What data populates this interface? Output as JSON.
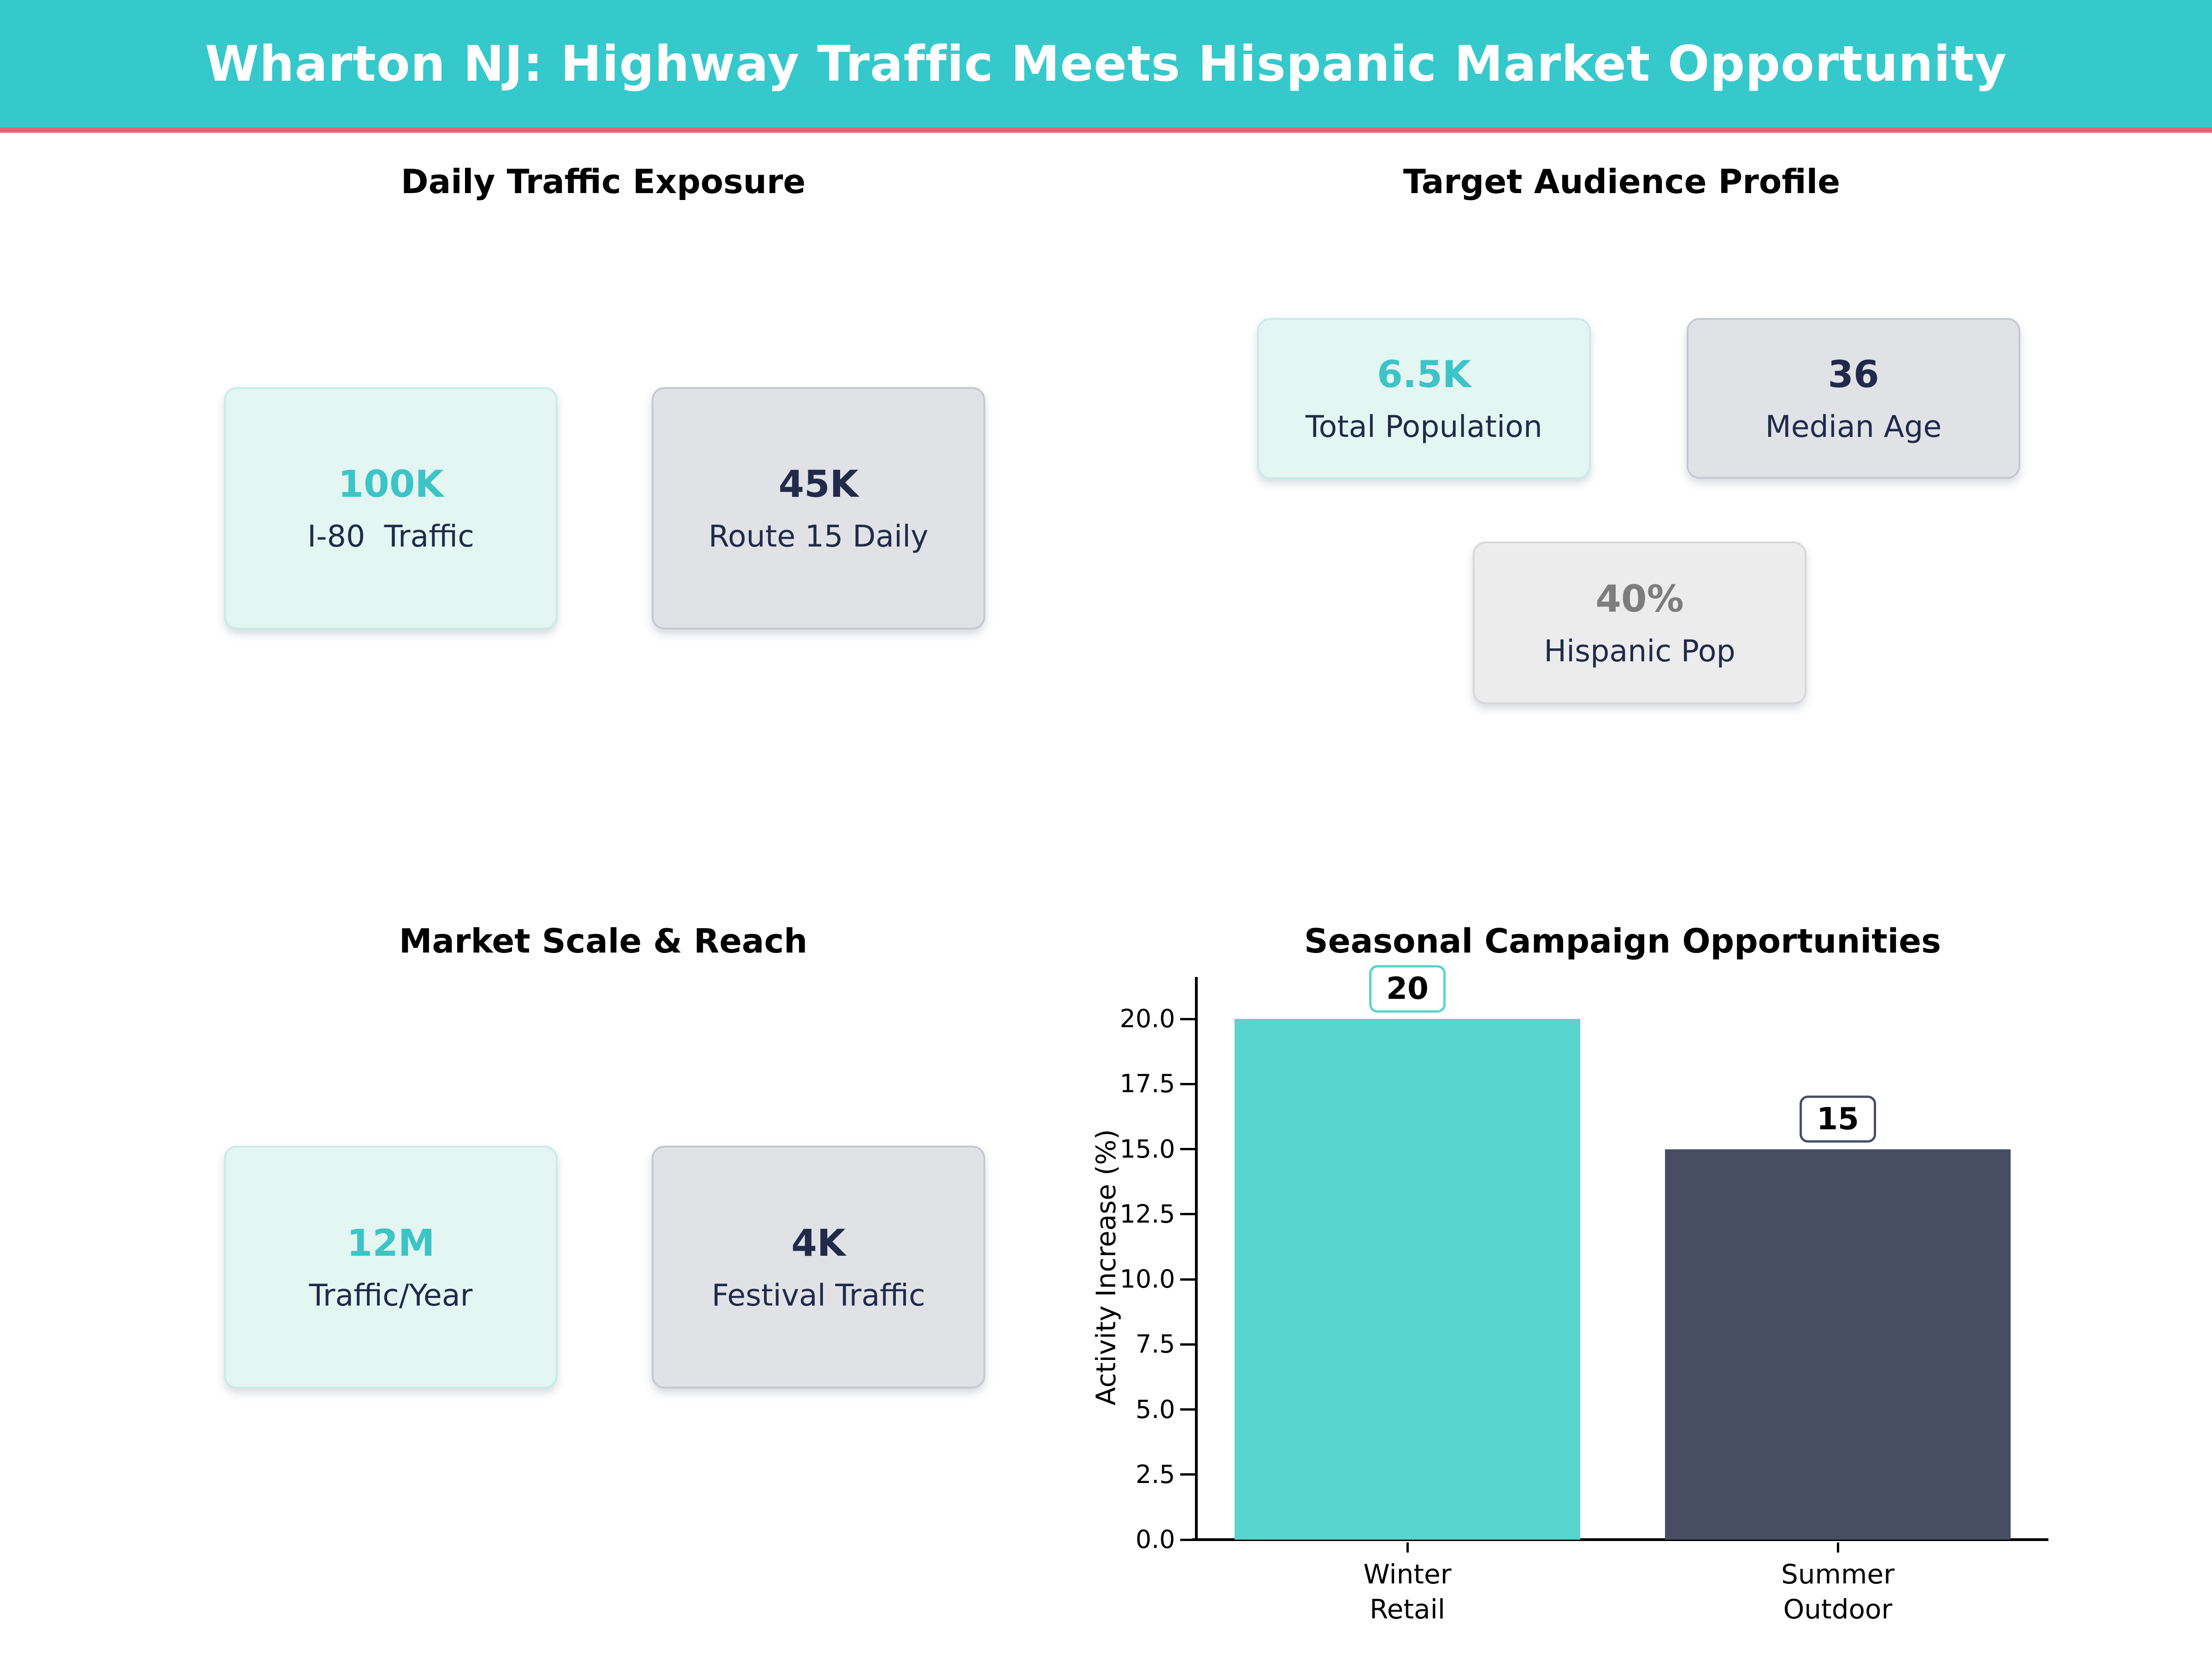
{
  "header": {
    "title": "Wharton NJ: Highway Traffic Meets Hispanic Market Opportunity",
    "bg_color": "#35c9cc",
    "accent_color": "#ef5e76"
  },
  "palette": {
    "mint_bg": "#e4f6f2",
    "mint_border": "#c8ece6",
    "gray_bg": "#e1e2e6",
    "gray_border": "#c6c8d0",
    "light_bg": "#ececec",
    "light_border": "#d8d8d8",
    "teal_text": "#3cc4c7",
    "navy_text": "#212a4b",
    "gray_text": "#7d7d7d",
    "bar_teal": "#57d4cd",
    "bar_slate": "#474e64"
  },
  "sections": {
    "traffic": {
      "title": "Daily Traffic Exposure",
      "cards": [
        {
          "value": "100K",
          "label": "I-80  Traffic",
          "variant": "mint"
        },
        {
          "value": "45K",
          "label": "Route 15 Daily",
          "variant": "gray"
        }
      ]
    },
    "audience": {
      "title": "Target Audience Profile",
      "cards": [
        {
          "value": "6.5K",
          "label": "Total Population",
          "variant": "mint"
        },
        {
          "value": "36",
          "label": "Median Age",
          "variant": "gray"
        },
        {
          "value": "40%",
          "label": "Hispanic Pop",
          "variant": "light"
        }
      ]
    },
    "market": {
      "title": "Market Scale & Reach",
      "cards": [
        {
          "value": "12M",
          "label": "Traffic/Year",
          "variant": "mint"
        },
        {
          "value": "4K",
          "label": "Festival Traffic",
          "variant": "gray"
        }
      ]
    },
    "seasonal": {
      "title": "Seasonal Campaign Opportunities"
    }
  },
  "chart_data": {
    "type": "bar",
    "title": "Seasonal Campaign Opportunities",
    "categories": [
      "Winter\nRetail",
      "Summer\nOutdoor"
    ],
    "values": [
      20,
      15
    ],
    "data_labels": [
      "20",
      "15"
    ],
    "bar_colors": [
      "#57d4cd",
      "#474e64"
    ],
    "xlabel": "",
    "ylabel": "Activity Increase (%)",
    "ylim": [
      0,
      21.6
    ],
    "yticks": [
      0,
      2.5,
      5,
      7.5,
      10,
      12.5,
      15,
      17.5,
      20
    ],
    "ytick_labels": [
      "0.0",
      "2.5",
      "5.0",
      "7.5",
      "10.0",
      "12.5",
      "15.0",
      "17.5",
      "20.0"
    ],
    "grid": false,
    "legend": false
  }
}
